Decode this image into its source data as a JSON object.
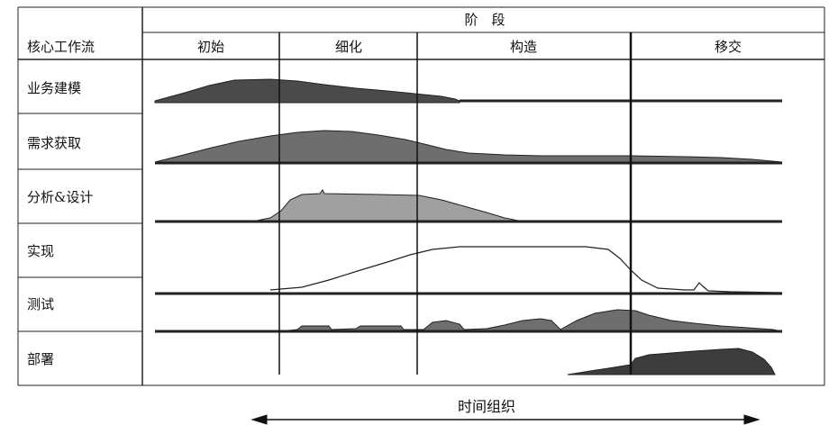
{
  "header": {
    "stage_title": "阶　段",
    "workflow_header": "核心工作流"
  },
  "phases": [
    "初始",
    "细化",
    "构造",
    "移交"
  ],
  "workflows": [
    {
      "label": "业务建模",
      "fill": "#4a4a4a"
    },
    {
      "label": "需求获取",
      "fill": "#6e6e6e"
    },
    {
      "label": "分析&设计",
      "fill": "#a0a0a0"
    },
    {
      "label": "实现",
      "fill": "#ffffff"
    },
    {
      "label": "测试",
      "fill": "#6e6e6e"
    },
    {
      "label": "部署",
      "fill": "#3c3c3c"
    }
  ],
  "footer": {
    "axis_label": "时间组织"
  }
}
